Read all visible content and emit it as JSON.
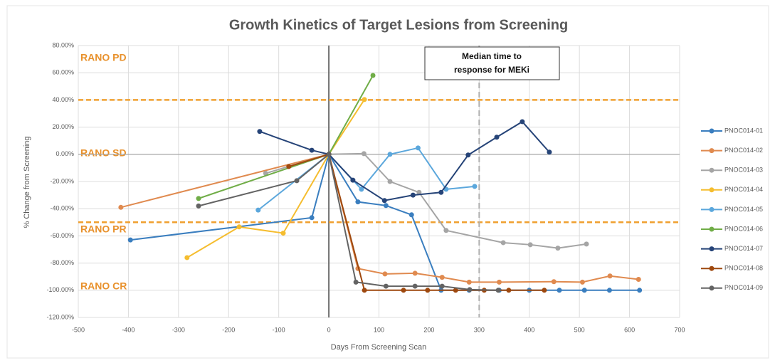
{
  "chart_data": {
    "type": "line",
    "title": "Growth Kinetics of Target Lesions from Screening",
    "xlabel": "Days From Screening Scan",
    "ylabel": "% Change from Screening",
    "xlim": [
      -500,
      700
    ],
    "xticks": [
      -500,
      -400,
      -300,
      -200,
      -100,
      0,
      100,
      200,
      300,
      400,
      500,
      600,
      700
    ],
    "ylim": [
      -120,
      80
    ],
    "yticks": [
      {
        "value": 80,
        "label": "80.00%"
      },
      {
        "value": 60,
        "label": "60.00%"
      },
      {
        "value": 40,
        "label": "40.00%"
      },
      {
        "value": 20,
        "label": "20.00%"
      },
      {
        "value": 0,
        "label": "0.00%"
      },
      {
        "value": -20,
        "label": "-20.00%"
      },
      {
        "value": -40,
        "label": "-40.00%"
      },
      {
        "value": -60,
        "label": "-60.00%"
      },
      {
        "value": -80,
        "label": "-80.00%"
      },
      {
        "value": -100,
        "label": "-100.00%"
      },
      {
        "value": -120,
        "label": "-120.00%"
      }
    ],
    "grid": true,
    "legend": "right",
    "reference_lines": [
      {
        "axis": "y",
        "value": 40,
        "color": "#f0a030"
      },
      {
        "axis": "y",
        "value": -50,
        "color": "#f0a030"
      },
      {
        "axis": "x",
        "value": 300,
        "color": "#b0b0b0"
      }
    ],
    "zones": [
      "RANO PD",
      "RANO SD",
      "RANO PR",
      "RANO CR"
    ],
    "median_box": [
      "Median time to",
      "response for MEKi"
    ],
    "series": [
      {
        "name": "PNOC014-01",
        "color": "#3a7ebf",
        "x": [
          -396,
          -34,
          0,
          58,
          114,
          165,
          224,
          280,
          340,
          400,
          460,
          510,
          560,
          620
        ],
        "values": [
          -63,
          -46.6,
          0,
          -35,
          -37.7,
          -44.5,
          -100,
          -100,
          -100,
          -100,
          -100,
          -100,
          -100,
          -100
        ]
      },
      {
        "name": "PNOC014-02",
        "color": "#e08a4f",
        "x": [
          -415,
          0,
          58,
          112,
          172,
          226,
          280,
          340,
          449,
          506,
          561,
          618
        ],
        "values": [
          -39,
          0,
          -84,
          -88,
          -87.5,
          -90.5,
          -94,
          -94,
          -93.7,
          -94,
          -89.5,
          -92
        ]
      },
      {
        "name": "PNOC014-03",
        "color": "#a5a5a5",
        "x": [
          -126,
          0,
          70,
          122,
          180,
          234,
          348,
          402,
          457,
          514
        ],
        "values": [
          -14,
          0,
          0.5,
          -20,
          -28,
          -56,
          -65,
          -66.5,
          -69,
          -66
        ]
      },
      {
        "name": "PNOC014-04",
        "color": "#f5bd2f",
        "x": [
          -283,
          -179,
          -91,
          0,
          71
        ],
        "values": [
          -76,
          -53.4,
          -58,
          0,
          40.3
        ]
      },
      {
        "name": "PNOC014-05",
        "color": "#5ba7dc",
        "x": [
          -141,
          0,
          65,
          122,
          178,
          234,
          291
        ],
        "values": [
          -41,
          0,
          -25.7,
          0,
          4.7,
          -25.7,
          -23.6
        ]
      },
      {
        "name": "PNOC014-06",
        "color": "#70ad47",
        "x": [
          -260,
          0,
          88
        ],
        "values": [
          -32.5,
          0,
          58
        ]
      },
      {
        "name": "PNOC014-07",
        "color": "#264478",
        "x": [
          -138,
          -34,
          0,
          48,
          111,
          168,
          224,
          278,
          335,
          386,
          440
        ],
        "values": [
          16.8,
          3,
          0,
          -19,
          -34,
          -30,
          -28,
          -0.5,
          12.6,
          24,
          1.6
        ]
      },
      {
        "name": "PNOC014-08",
        "color": "#9e480e",
        "x": [
          -80,
          0,
          71,
          149,
          197,
          253,
          310,
          359,
          430
        ],
        "values": [
          -9,
          0,
          -100,
          -100,
          -100,
          -100,
          -100,
          -100,
          -100
        ]
      },
      {
        "name": "PNOC014-09",
        "color": "#636363",
        "x": [
          -260,
          -64,
          0,
          54,
          114,
          172,
          226,
          281,
          338
        ],
        "values": [
          -38,
          -19.4,
          0,
          -94,
          -97,
          -97,
          -97,
          -99.5,
          -100
        ]
      }
    ]
  }
}
